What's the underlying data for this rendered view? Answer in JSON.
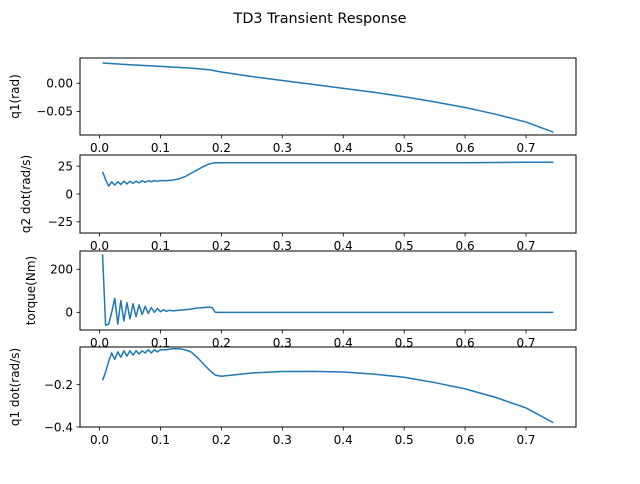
{
  "figure": {
    "title": "TD3 Transient Response"
  },
  "chart_data": [
    {
      "type": "line",
      "ylabel": "q1(rad)",
      "xlabel": "",
      "xlim": [
        -0.032,
        0.782
      ],
      "ylim": [
        -0.092,
        0.045
      ],
      "xticks": [
        0.0,
        0.1,
        0.2,
        0.3,
        0.4,
        0.5,
        0.6,
        0.7
      ],
      "xtick_labels": [
        "0.0",
        "0.1",
        "0.2",
        "0.3",
        "0.4",
        "0.5",
        "0.6",
        "0.7"
      ],
      "yticks": [
        0.0,
        -0.05
      ],
      "ytick_labels": [
        "0.00",
        "−0.05"
      ],
      "grid": false,
      "series": [
        {
          "color": "#1f77b4",
          "x": [
            0.005,
            0.05,
            0.1,
            0.15,
            0.18,
            0.2,
            0.25,
            0.3,
            0.35,
            0.4,
            0.45,
            0.5,
            0.55,
            0.6,
            0.65,
            0.7,
            0.745
          ],
          "y": [
            0.036,
            0.033,
            0.03,
            0.027,
            0.024,
            0.02,
            0.012,
            0.005,
            -0.002,
            -0.009,
            -0.016,
            -0.024,
            -0.033,
            -0.043,
            -0.055,
            -0.069,
            -0.087
          ]
        }
      ]
    },
    {
      "type": "line",
      "ylabel": "q2 dot(rad/s)",
      "xlabel": "",
      "xlim": [
        -0.032,
        0.782
      ],
      "ylim": [
        -35,
        35
      ],
      "xticks": [
        0.0,
        0.1,
        0.2,
        0.3,
        0.4,
        0.5,
        0.6,
        0.7
      ],
      "xtick_labels": [
        "0.0",
        "0.1",
        "0.2",
        "0.3",
        "0.4",
        "0.5",
        "0.6",
        "0.7"
      ],
      "yticks": [
        25,
        0,
        -25
      ],
      "ytick_labels": [
        "25",
        "0",
        "−25"
      ],
      "grid": false,
      "series": [
        {
          "color": "#1f77b4",
          "x": [
            0.005,
            0.01,
            0.015,
            0.02,
            0.025,
            0.03,
            0.035,
            0.04,
            0.045,
            0.05,
            0.055,
            0.06,
            0.065,
            0.07,
            0.075,
            0.08,
            0.085,
            0.09,
            0.095,
            0.1,
            0.11,
            0.12,
            0.13,
            0.14,
            0.15,
            0.16,
            0.17,
            0.18,
            0.19,
            0.2,
            0.3,
            0.4,
            0.5,
            0.6,
            0.7,
            0.745
          ],
          "y": [
            20,
            13,
            7,
            11,
            8,
            11,
            8.5,
            11.5,
            9,
            11.5,
            9.5,
            11.5,
            10,
            12,
            10.5,
            12,
            11,
            12,
            11.5,
            12,
            12,
            12.5,
            13.5,
            15.5,
            18.5,
            21.5,
            24.5,
            27,
            28,
            28,
            28,
            28,
            28,
            28,
            28.5,
            28.5
          ]
        }
      ]
    },
    {
      "type": "line",
      "ylabel": "torque(Nm)",
      "xlabel": "",
      "xlim": [
        -0.032,
        0.782
      ],
      "ylim": [
        -82,
        285
      ],
      "xticks": [
        0.0,
        0.1,
        0.2,
        0.3,
        0.4,
        0.5,
        0.6,
        0.7
      ],
      "xtick_labels": [
        "0.0",
        "0.1",
        "0.2",
        "0.3",
        "0.4",
        "0.5",
        "0.6",
        "0.7"
      ],
      "yticks": [
        200,
        0
      ],
      "ytick_labels": [
        "200",
        "0"
      ],
      "grid": false,
      "series": [
        {
          "color": "#1f77b4",
          "x": [
            0.005,
            0.01,
            0.015,
            0.02,
            0.025,
            0.03,
            0.035,
            0.04,
            0.045,
            0.05,
            0.055,
            0.06,
            0.065,
            0.07,
            0.075,
            0.08,
            0.085,
            0.09,
            0.095,
            0.1,
            0.105,
            0.11,
            0.115,
            0.12,
            0.13,
            0.14,
            0.15,
            0.16,
            0.17,
            0.18,
            0.185,
            0.19,
            0.2,
            0.3,
            0.4,
            0.5,
            0.6,
            0.7,
            0.745
          ],
          "y": [
            270,
            -60,
            -55,
            0,
            65,
            -55,
            55,
            -40,
            45,
            -30,
            40,
            -20,
            35,
            -10,
            28,
            -5,
            22,
            0,
            18,
            3,
            12,
            5,
            10,
            7,
            10,
            12,
            15,
            20,
            22,
            24,
            22,
            0,
            0,
            0,
            0,
            0,
            0,
            0,
            0
          ]
        }
      ]
    },
    {
      "type": "line",
      "ylabel": "q1 dot(rad/s)",
      "xlabel": "",
      "xlim": [
        -0.032,
        0.782
      ],
      "ylim": [
        -0.4,
        -0.022
      ],
      "xticks": [
        0.0,
        0.1,
        0.2,
        0.3,
        0.4,
        0.5,
        0.6,
        0.7
      ],
      "xtick_labels": [
        "0.0",
        "0.1",
        "0.2",
        "0.3",
        "0.4",
        "0.5",
        "0.6",
        "0.7"
      ],
      "yticks": [
        -0.2,
        -0.4
      ],
      "ytick_labels": [
        "−0.2",
        "−0.4"
      ],
      "grid": false,
      "series": [
        {
          "color": "#1f77b4",
          "x": [
            0.005,
            0.01,
            0.015,
            0.02,
            0.025,
            0.03,
            0.035,
            0.04,
            0.045,
            0.05,
            0.055,
            0.06,
            0.065,
            0.07,
            0.075,
            0.08,
            0.085,
            0.09,
            0.095,
            0.1,
            0.11,
            0.12,
            0.13,
            0.14,
            0.15,
            0.16,
            0.17,
            0.18,
            0.19,
            0.2,
            0.25,
            0.3,
            0.35,
            0.4,
            0.45,
            0.5,
            0.55,
            0.6,
            0.65,
            0.7,
            0.745
          ],
          "y": [
            -0.18,
            -0.14,
            -0.09,
            -0.05,
            -0.08,
            -0.045,
            -0.07,
            -0.04,
            -0.065,
            -0.04,
            -0.06,
            -0.04,
            -0.055,
            -0.04,
            -0.05,
            -0.035,
            -0.05,
            -0.035,
            -0.045,
            -0.035,
            -0.035,
            -0.03,
            -0.03,
            -0.035,
            -0.045,
            -0.07,
            -0.1,
            -0.13,
            -0.155,
            -0.16,
            -0.145,
            -0.138,
            -0.137,
            -0.14,
            -0.15,
            -0.165,
            -0.19,
            -0.22,
            -0.26,
            -0.31,
            -0.38
          ]
        }
      ]
    }
  ]
}
